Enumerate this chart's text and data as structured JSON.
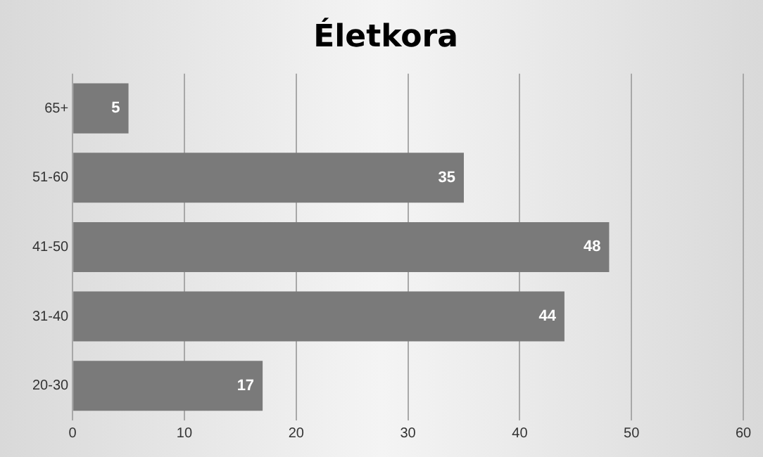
{
  "chart_data": {
    "type": "bar",
    "orientation": "horizontal",
    "title": "Életkora",
    "categories": [
      "65+",
      "51-60",
      "41-50",
      "31-40",
      "20-30"
    ],
    "values": [
      5,
      35,
      48,
      44,
      17
    ],
    "color": "#7a7a7a",
    "xlim": [
      0,
      60
    ],
    "xticks": [
      0,
      10,
      20,
      30,
      40,
      50,
      60
    ],
    "grid": "x",
    "legend": false,
    "data_labels": true
  }
}
